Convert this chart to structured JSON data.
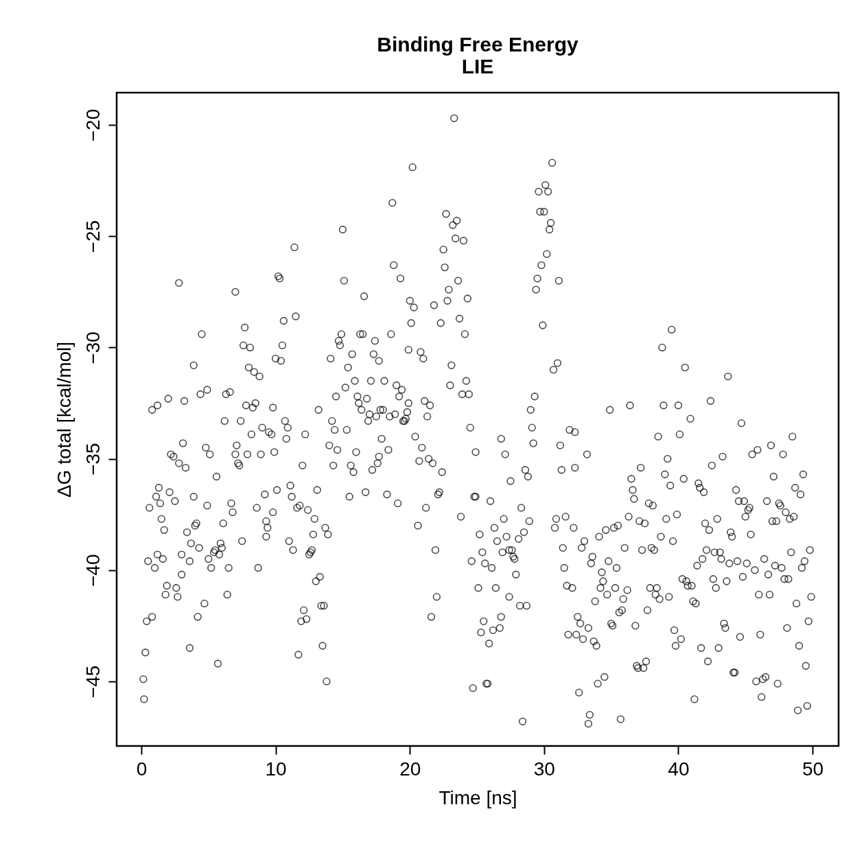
{
  "chart_data": {
    "type": "scatter",
    "title": "Binding Free Energy",
    "subtitle": "LIE",
    "xlabel": "Time [ns]",
    "ylabel": "ΔG total [kcal/mol]",
    "marker": "circle",
    "grid": false,
    "xlim": [
      -1.84,
      51.94
    ],
    "ylim": [
      -47.9,
      -18.55
    ],
    "xticks": [
      0,
      10,
      20,
      30,
      40,
      50
    ],
    "yticks": [
      -45,
      -40,
      -35,
      -30,
      -25,
      -20
    ],
    "series": [
      {
        "color": "#000000",
        "x": [
          0.15,
          0.2,
          0.3,
          0.4,
          0.5,
          0.6,
          0.8,
          0.8,
          1.0,
          1.1,
          1.2,
          1.2,
          1.3,
          1.4,
          1.5,
          1.6,
          1.7,
          1.8,
          1.9,
          2.0,
          2.1,
          2.2,
          2.4,
          2.5,
          2.6,
          2.7,
          2.8,
          2.8,
          3.0,
          3.0,
          3.1,
          3.2,
          3.3,
          3.4,
          3.6,
          3.6,
          3.7,
          3.9,
          3.9,
          4.0,
          4.1,
          4.2,
          4.3,
          4.4,
          4.5,
          4.7,
          4.8,
          4.9,
          4.9,
          5.0,
          5.1,
          5.2,
          5.4,
          5.5,
          5.6,
          5.7,
          5.8,
          5.9,
          6.0,
          6.1,
          6.2,
          6.3,
          6.4,
          6.5,
          6.6,
          6.7,
          6.8,
          7.0,
          7.0,
          7.1,
          7.2,
          7.3,
          7.4,
          7.5,
          7.6,
          7.7,
          7.8,
          7.9,
          8.0,
          8.1,
          8.2,
          8.3,
          8.4,
          8.5,
          8.6,
          8.7,
          8.8,
          8.9,
          9.0,
          9.2,
          9.3,
          9.3,
          9.4,
          9.5,
          9.7,
          9.8,
          9.8,
          9.9,
          10.0,
          10.1,
          10.2,
          10.3,
          10.4,
          10.5,
          10.6,
          10.7,
          10.8,
          10.9,
          11.0,
          11.1,
          11.2,
          11.3,
          11.4,
          11.5,
          11.6,
          11.7,
          11.8,
          11.9,
          12.0,
          12.1,
          12.2,
          12.3,
          12.4,
          12.5,
          12.6,
          12.7,
          12.8,
          12.9,
          13.0,
          13.1,
          13.2,
          13.3,
          13.4,
          13.5,
          13.6,
          13.7,
          13.8,
          13.9,
          14.0,
          14.1,
          14.2,
          14.3,
          14.4,
          14.5,
          14.6,
          14.7,
          14.8,
          14.9,
          15.0,
          15.1,
          15.2,
          15.3,
          15.4,
          15.5,
          15.6,
          15.7,
          15.8,
          15.9,
          16.0,
          16.1,
          16.2,
          16.3,
          16.4,
          16.5,
          16.6,
          16.7,
          16.8,
          16.9,
          17.0,
          17.1,
          17.2,
          17.3,
          17.4,
          17.5,
          17.6,
          17.7,
          17.7,
          17.8,
          17.9,
          18.0,
          18.1,
          18.3,
          18.4,
          18.5,
          18.6,
          18.7,
          18.8,
          18.9,
          19.0,
          19.1,
          19.2,
          19.3,
          19.4,
          19.5,
          19.6,
          19.7,
          19.8,
          19.9,
          19.9,
          20.0,
          20.1,
          20.2,
          20.3,
          20.4,
          20.6,
          20.7,
          20.8,
          20.9,
          21.0,
          21.1,
          21.2,
          21.3,
          21.4,
          21.5,
          21.6,
          21.7,
          21.8,
          21.9,
          22.0,
          22.1,
          22.2,
          22.3,
          22.4,
          22.5,
          22.6,
          22.7,
          22.8,
          22.9,
          23.0,
          23.1,
          23.2,
          23.3,
          23.4,
          23.5,
          23.6,
          23.7,
          23.8,
          23.9,
          24.0,
          24.1,
          24.2,
          24.3,
          24.4,
          24.5,
          24.6,
          24.7,
          24.8,
          24.9,
          24.9,
          25.1,
          25.2,
          25.3,
          25.4,
          25.5,
          25.6,
          25.7,
          25.8,
          25.9,
          26.0,
          26.1,
          26.2,
          26.3,
          26.4,
          26.5,
          26.7,
          26.8,
          26.8,
          26.9,
          27.0,
          27.1,
          27.2,
          27.4,
          27.4,
          27.5,
          27.6,
          27.7,
          27.8,
          27.9,
          28.1,
          28.2,
          28.3,
          28.4,
          28.5,
          28.6,
          28.7,
          28.8,
          28.9,
          29.0,
          29.1,
          29.2,
          29.3,
          29.4,
          29.5,
          29.6,
          29.7,
          29.8,
          29.9,
          30.0,
          30.1,
          30.2,
          30.3,
          30.4,
          30.5,
          30.6,
          30.7,
          30.8,
          30.9,
          31.0,
          31.1,
          31.2,
          31.3,
          31.4,
          31.5,
          31.6,
          31.7,
          31.8,
          31.9,
          32.1,
          32.2,
          32.3,
          32.3,
          32.4,
          32.5,
          32.6,
          32.7,
          32.8,
          32.9,
          33.0,
          33.2,
          33.3,
          33.3,
          33.4,
          33.5,
          33.6,
          33.7,
          33.8,
          33.9,
          34.0,
          34.1,
          34.2,
          34.3,
          34.4,
          34.5,
          34.6,
          34.7,
          34.8,
          34.9,
          35.0,
          35.1,
          35.2,
          35.3,
          35.4,
          35.5,
          35.6,
          35.7,
          35.8,
          35.9,
          36.0,
          36.2,
          36.3,
          36.4,
          36.5,
          36.6,
          36.7,
          36.8,
          36.9,
          37.0,
          37.1,
          37.2,
          37.3,
          37.4,
          37.5,
          37.6,
          37.7,
          37.8,
          37.9,
          38.0,
          38.1,
          38.2,
          38.3,
          38.4,
          38.5,
          38.6,
          38.7,
          38.8,
          38.9,
          39.0,
          39.1,
          39.2,
          39.3,
          39.4,
          39.5,
          39.6,
          39.7,
          39.8,
          39.9,
          40.0,
          40.1,
          40.2,
          40.3,
          40.4,
          40.5,
          40.6,
          40.7,
          40.9,
          41.0,
          41.1,
          41.2,
          41.3,
          41.4,
          41.5,
          41.6,
          41.7,
          41.8,
          41.9,
          42.0,
          42.1,
          42.2,
          42.3,
          42.4,
          42.5,
          42.6,
          42.7,
          42.8,
          42.9,
          43.0,
          43.1,
          43.2,
          43.3,
          43.4,
          43.5,
          43.6,
          43.7,
          43.8,
          43.9,
          44.0,
          44.1,
          44.2,
          44.3,
          44.4,
          44.5,
          44.6,
          44.7,
          44.8,
          44.9,
          45.0,
          45.1,
          45.2,
          45.3,
          45.4,
          45.5,
          45.7,
          45.8,
          45.9,
          46.0,
          46.1,
          46.2,
          46.3,
          46.4,
          46.5,
          46.6,
          46.7,
          46.8,
          46.9,
          47.0,
          47.1,
          47.2,
          47.3,
          47.4,
          47.5,
          47.6,
          47.7,
          47.8,
          47.9,
          48.0,
          48.1,
          48.2,
          48.3,
          48.4,
          48.5,
          48.6,
          48.7,
          48.8,
          48.9,
          49.0,
          49.1,
          49.2,
          49.3,
          49.4,
          49.5,
          49.6,
          49.7,
          49.8,
          49.9
        ],
        "values": [
          -44.9,
          -45.8,
          -43.7,
          -42.3,
          -39.6,
          -37.2,
          -42.1,
          -32.8,
          -39.9,
          -36.7,
          -32.6,
          -39.3,
          -36.3,
          -37.0,
          -37.7,
          -39.5,
          -38.2,
          -41.1,
          -40.7,
          -32.3,
          -36.5,
          -34.8,
          -34.9,
          -36.9,
          -40.8,
          -41.2,
          -35.2,
          -27.1,
          -40.2,
          -39.3,
          -34.3,
          -32.4,
          -35.4,
          -38.3,
          -39.6,
          -43.5,
          -38.8,
          -30.8,
          -36.7,
          -38.0,
          -37.9,
          -42.1,
          -39.0,
          -32.1,
          -29.4,
          -41.5,
          -34.5,
          -31.9,
          -37.1,
          -39.5,
          -34.8,
          -39.9,
          -39.2,
          -39.1,
          -35.8,
          -44.2,
          -39.3,
          -38.8,
          -39.0,
          -37.9,
          -33.3,
          -32.1,
          -41.1,
          -39.9,
          -32.0,
          -37.0,
          -37.4,
          -34.8,
          -27.5,
          -34.4,
          -35.2,
          -35.3,
          -33.3,
          -38.7,
          -29.9,
          -29.1,
          -32.6,
          -34.8,
          -30.9,
          -30.0,
          -33.9,
          -32.7,
          -31.1,
          -32.5,
          -37.2,
          -39.9,
          -31.3,
          -34.8,
          -33.6,
          -36.6,
          -38.5,
          -37.8,
          -38.1,
          -33.8,
          -33.9,
          -37.4,
          -32.7,
          -34.7,
          -30.5,
          -36.4,
          -26.8,
          -26.9,
          -30.6,
          -29.9,
          -28.8,
          -33.3,
          -34.1,
          -33.6,
          -38.7,
          -36.2,
          -36.7,
          -39.1,
          -25.5,
          -28.6,
          -37.2,
          -43.8,
          -37.1,
          -42.3,
          -35.3,
          -41.8,
          -33.9,
          -42.2,
          -37.3,
          -39.3,
          -39.2,
          -39.1,
          -38.4,
          -37.7,
          -40.5,
          -36.4,
          -32.8,
          -40.3,
          -41.6,
          -43.4,
          -41.6,
          -38.1,
          -45.0,
          -38.4,
          -34.4,
          -30.5,
          -33.3,
          -35.3,
          -33.7,
          -32.2,
          -34.6,
          -29.7,
          -29.9,
          -29.4,
          -24.7,
          -27.0,
          -31.8,
          -33.7,
          -30.9,
          -36.7,
          -35.3,
          -30.3,
          -35.6,
          -31.5,
          -34.7,
          -32.2,
          -32.5,
          -29.4,
          -32.8,
          -29.4,
          -27.7,
          -36.5,
          -32.3,
          -33.3,
          -33.0,
          -31.5,
          -35.5,
          -30.3,
          -29.7,
          -33.1,
          -35.2,
          -34.9,
          -30.6,
          -32.8,
          -34.1,
          -32.8,
          -31.5,
          -36.6,
          -34.6,
          -33.1,
          -29.4,
          -23.5,
          -26.3,
          -33.0,
          -31.7,
          -37.0,
          -32.2,
          -26.9,
          -31.9,
          -33.3,
          -33.3,
          -33.2,
          -32.9,
          -32.5,
          -30.1,
          -27.9,
          -28.9,
          -21.9,
          -28.2,
          -34.0,
          -38.0,
          -35.1,
          -30.2,
          -34.5,
          -30.5,
          -32.4,
          -37.2,
          -33.1,
          -35.0,
          -32.6,
          -42.1,
          -35.2,
          -28.1,
          -39.1,
          -41.2,
          -36.6,
          -36.5,
          -28.9,
          -35.6,
          -25.6,
          -26.4,
          -24.0,
          -27.9,
          -27.4,
          -31.7,
          -30.8,
          -24.5,
          -19.7,
          -25.1,
          -24.3,
          -27.0,
          -28.7,
          -37.6,
          -32.1,
          -25.2,
          -29.4,
          -31.5,
          -27.8,
          -32.1,
          -33.6,
          -39.6,
          -45.3,
          -36.7,
          -36.7,
          -34.7,
          -40.8,
          -38.4,
          -42.8,
          -39.2,
          -42.3,
          -39.7,
          -45.1,
          -45.1,
          -43.3,
          -36.9,
          -39.9,
          -42.7,
          -38.1,
          -40.8,
          -38.7,
          -42.6,
          -42.1,
          -34.1,
          -39.2,
          -37.7,
          -34.8,
          -38.5,
          -39.1,
          -41.2,
          -36.0,
          -39.1,
          -39.4,
          -39.5,
          -40.2,
          -38.6,
          -41.6,
          -37.2,
          -46.8,
          -38.3,
          -35.5,
          -41.6,
          -35.8,
          -37.8,
          -32.8,
          -33.6,
          -34.3,
          -32.2,
          -27.4,
          -26.9,
          -23.0,
          -23.9,
          -26.3,
          -29.0,
          -23.9,
          -22.7,
          -25.8,
          -23.0,
          -24.7,
          -24.4,
          -21.7,
          -31.0,
          -38.1,
          -37.7,
          -30.7,
          -27.0,
          -34.4,
          -35.5,
          -39.0,
          -39.9,
          -37.6,
          -40.7,
          -42.9,
          -33.7,
          -40.8,
          -38.1,
          -33.8,
          -35.4,
          -42.9,
          -42.1,
          -45.5,
          -42.4,
          -39.0,
          -43.1,
          -38.7,
          -34.8,
          -42.6,
          -46.9,
          -46.5,
          -39.7,
          -39.4,
          -43.2,
          -41.4,
          -43.4,
          -45.1,
          -38.5,
          -40.8,
          -40.1,
          -40.5,
          -44.8,
          -38.2,
          -41.1,
          -39.6,
          -32.8,
          -42.4,
          -42.5,
          -38.1,
          -40.8,
          -39.9,
          -38.0,
          -41.9,
          -46.7,
          -41.8,
          -41.3,
          -39.0,
          -40.9,
          -37.6,
          -32.6,
          -35.9,
          -36.4,
          -36.8,
          -42.5,
          -44.3,
          -44.4,
          -37.8,
          -35.4,
          -39.1,
          -44.4,
          -37.9,
          -44.1,
          -41.8,
          -37.0,
          -40.8,
          -39.0,
          -37.1,
          -39.1,
          -41.1,
          -40.8,
          -34.0,
          -41.3,
          -38.5,
          -30.0,
          -32.6,
          -35.7,
          -37.7,
          -35.0,
          -41.2,
          -36.2,
          -29.2,
          -38.7,
          -42.7,
          -43.4,
          -37.5,
          -32.6,
          -33.9,
          -43.1,
          -40.4,
          -35.9,
          -30.9,
          -40.5,
          -40.7,
          -33.2,
          -40.7,
          -41.4,
          -45.8,
          -41.5,
          -39.8,
          -36.1,
          -36.3,
          -43.5,
          -39.5,
          -36.5,
          -37.9,
          -39.1,
          -44.1,
          -38.2,
          -32.4,
          -35.3,
          -40.4,
          -39.2,
          -40.8,
          -37.7,
          -43.5,
          -39.2,
          -39.5,
          -34.9,
          -42.4,
          -42.6,
          -40.5,
          -31.3,
          -39.7,
          -38.3,
          -38.5,
          -44.6,
          -44.6,
          -36.4,
          -39.6,
          -36.9,
          -43.0,
          -33.4,
          -40.3,
          -36.9,
          -37.6,
          -39.7,
          -37.3,
          -37.2,
          -38.4,
          -34.8,
          -40.0,
          -45.0,
          -34.6,
          -41.1,
          -42.9,
          -45.7,
          -44.9,
          -39.5,
          -44.8,
          -36.9,
          -40.2,
          -41.1,
          -34.4,
          -37.8,
          -35.8,
          -39.8,
          -37.8,
          -45.1,
          -37.0,
          -37.1,
          -39.9,
          -34.8,
          -40.4,
          -37.4,
          -42.6,
          -40.4,
          -37.7,
          -39.2,
          -34.0,
          -37.6,
          -36.3,
          -41.5,
          -46.3,
          -43.4,
          -36.6,
          -39.9,
          -35.7,
          -39.6,
          -44.3,
          -46.1,
          -42.3,
          -39.1,
          -41.2
        ]
      }
    ]
  }
}
